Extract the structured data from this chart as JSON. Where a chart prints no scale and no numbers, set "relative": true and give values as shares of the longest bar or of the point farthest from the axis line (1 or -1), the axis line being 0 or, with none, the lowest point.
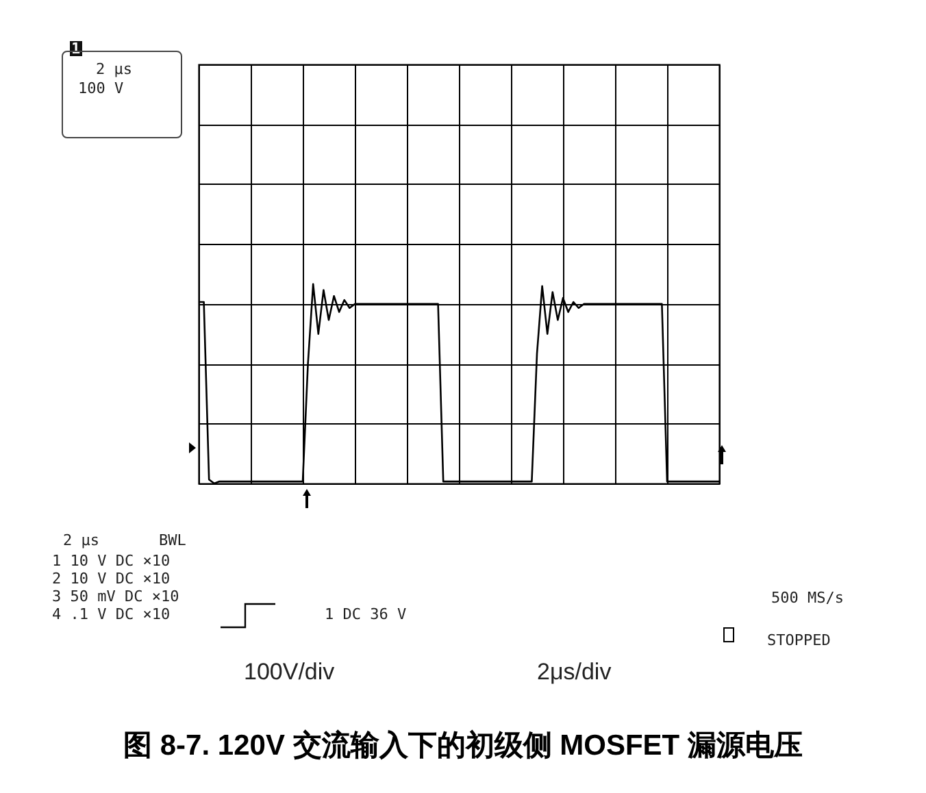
{
  "chart_data": {
    "type": "line",
    "title": "图 8-7. 120V 交流输入下的初级侧 MOSFET 漏源电压",
    "relative": true,
    "grid": true,
    "marker": "none",
    "line_style": "solid",
    "categories": [
      null,
      null,
      null,
      null,
      null,
      null,
      null,
      null,
      null,
      null,
      null,
      null,
      null,
      null,
      null,
      null,
      null,
      null,
      null,
      null,
      null,
      null,
      null,
      null,
      null,
      null,
      null,
      null,
      null,
      null,
      null,
      null,
      null,
      null,
      null,
      null,
      null,
      null,
      null,
      null,
      null,
      null,
      null,
      null,
      null,
      null,
      null,
      null,
      null,
      null,
      null,
      null,
      null,
      null,
      null,
      null,
      null,
      null,
      null,
      null,
      null,
      null,
      null,
      null,
      null,
      null,
      null,
      null,
      null,
      null,
      null,
      null,
      null,
      null,
      null,
      null,
      null,
      null,
      null,
      null,
      null,
      null,
      null,
      null,
      null,
      null,
      null,
      null,
      null,
      null,
      null,
      null,
      null,
      null,
      null,
      null,
      null,
      null,
      null,
      null,
      null
    ],
    "series": [
      {
        "color": "#000000",
        "values": [
          0.91,
          0.91,
          0.02,
          0.0,
          0.01,
          0.01,
          0.01,
          0.01,
          0.01,
          0.01,
          0.01,
          0.01,
          0.01,
          0.01,
          0.01,
          0.01,
          0.01,
          0.01,
          0.01,
          0.01,
          0.01,
          0.6,
          1.0,
          0.75,
          0.97,
          0.82,
          0.94,
          0.86,
          0.92,
          0.88,
          0.9,
          0.9,
          0.9,
          0.9,
          0.9,
          0.9,
          0.9,
          0.9,
          0.9,
          0.9,
          0.9,
          0.9,
          0.9,
          0.9,
          0.9,
          0.9,
          0.9,
          0.01,
          0.01,
          0.01,
          0.01,
          0.01,
          0.01,
          0.01,
          0.01,
          0.01,
          0.01,
          0.01,
          0.01,
          0.01,
          0.01,
          0.01,
          0.01,
          0.01,
          0.01,
          0.65,
          0.99,
          0.75,
          0.96,
          0.82,
          0.93,
          0.86,
          0.91,
          0.88,
          0.9,
          0.9,
          0.9,
          0.9,
          0.9,
          0.9,
          0.9,
          0.9,
          0.9,
          0.9,
          0.9,
          0.9,
          0.9,
          0.9,
          0.9,
          0.9,
          0.01,
          0.01,
          0.01,
          0.01,
          0.01,
          0.01,
          0.01,
          0.01,
          0.01,
          0.01,
          0.01
        ]
      }
    ],
    "annotations": [
      "1",
      "2 μs",
      "100 V",
      "2 μs",
      "BWL",
      "1 10 V DC ×10",
      "2 10 V DC ×10",
      "3 50 mV DC ×10",
      "4 .1 V DC ×10",
      "1 DC 36 V",
      "500 MS/s",
      "STOPPED",
      "100V/div",
      "2μs/div"
    ]
  }
}
